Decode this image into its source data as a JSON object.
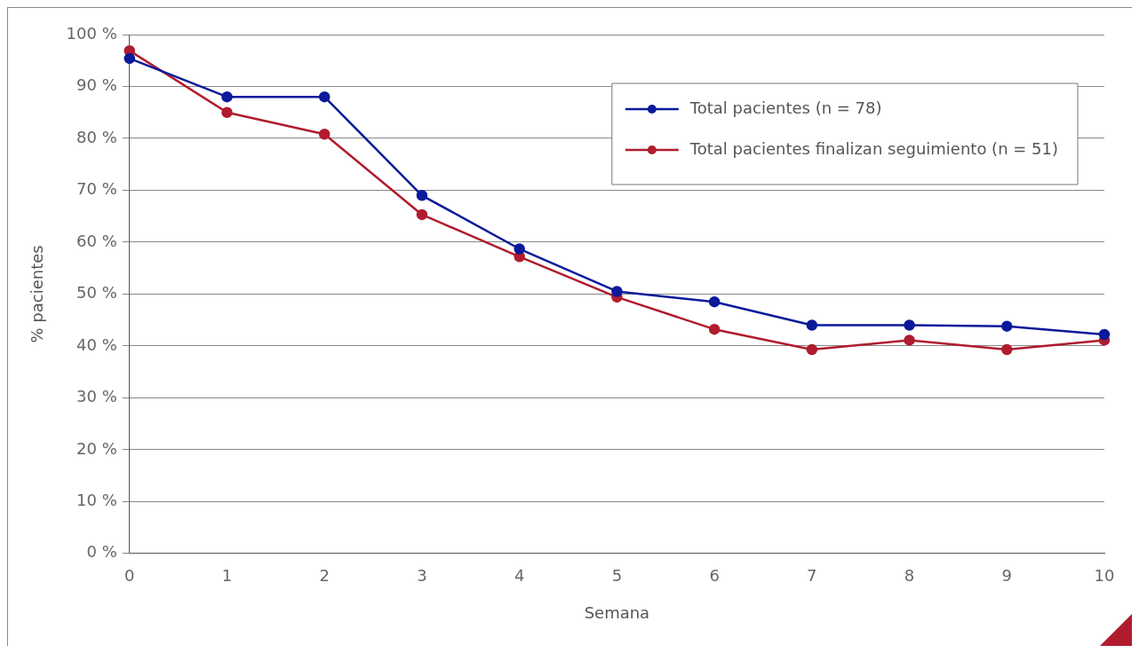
{
  "chart_data": {
    "type": "line",
    "xlabel": "Semana",
    "ylabel": "% pacientes",
    "categories": [
      "0",
      "1",
      "2",
      "3",
      "4",
      "5",
      "6",
      "7",
      "8",
      "9",
      "10"
    ],
    "series": [
      {
        "name": "Total pacientes (n = 78)",
        "color": "#0a1a9a",
        "values": [
          95.4,
          88,
          88,
          69,
          58.7,
          50.5,
          48.5,
          44,
          44,
          43.8,
          42.2
        ]
      },
      {
        "name": "Total pacientes finalizan seguimiento (n = 51)",
        "color": "#b01c2e",
        "values": [
          96.9,
          85,
          80.8,
          65.3,
          57.2,
          49.4,
          43.2,
          39.3,
          41.1,
          39.3,
          41.1
        ]
      }
    ],
    "ylim": [
      0,
      100
    ],
    "yticks": [
      {
        "value": 0,
        "label": "0 %"
      },
      {
        "value": 10,
        "label": "10 %"
      },
      {
        "value": 20,
        "label": "20 %"
      },
      {
        "value": 30,
        "label": "30 %"
      },
      {
        "value": 40,
        "label": "40 %"
      },
      {
        "value": 50,
        "label": "50 %"
      },
      {
        "value": 60,
        "label": "60 %"
      },
      {
        "value": 70,
        "label": "70 %"
      },
      {
        "value": 80,
        "label": "80 %"
      },
      {
        "value": 90,
        "label": "90 %"
      },
      {
        "value": 100,
        "label": "100 %"
      }
    ],
    "grid": "y",
    "legend": "top right",
    "marker": "circle",
    "line_style": "solid"
  }
}
